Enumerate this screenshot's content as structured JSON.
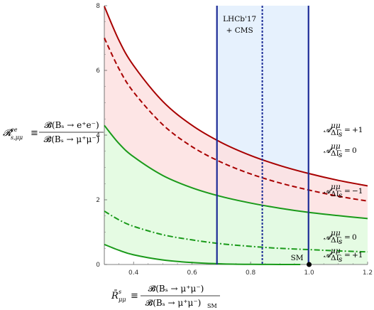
{
  "chart_data": {
    "type": "line",
    "xlim": [
      0.3,
      1.2
    ],
    "ylim": [
      0,
      8
    ],
    "x_ticks": [
      "0.4",
      "0.6",
      "0.8",
      "1.0",
      "1.2"
    ],
    "y_ticks": [
      "0",
      "2",
      "4",
      "6",
      "8"
    ],
    "ylabel": {
      "lhs": "𝓡",
      "lhs_sub": "s,μμ",
      "lhs_sup": "ee",
      "equiv": "≡",
      "numerator": "𝓑̄(Bₛ → e⁺e⁻)",
      "denominator": "𝓑̄(Bₛ → μ⁺μ⁻)"
    },
    "xlabel": {
      "lhs": "R̄",
      "lhs_sub": "μμ",
      "lhs_sup": "s",
      "equiv": "≡",
      "numerator": "𝓑̄(Bₛ → μ⁺μ⁻)",
      "denominator": "𝓑̄(Bₛ → μ⁺μ⁻)",
      "denominator_sub": "SM"
    },
    "band": {
      "label_line1": "LHCb'17",
      "label_line2": "+ CMS",
      "x_low": 0.685,
      "x_central": 0.84,
      "x_high": 0.998
    },
    "series": [
      {
        "label_value": "+1",
        "color": "#a80000",
        "style": "solid",
        "x": [
          0.3,
          0.35,
          0.4,
          0.5,
          0.6,
          0.7,
          0.8,
          0.9,
          1.0,
          1.1,
          1.2
        ],
        "y": [
          7.98,
          6.93,
          6.15,
          5.04,
          4.3,
          3.77,
          3.37,
          3.06,
          2.81,
          2.6,
          2.43
        ]
      },
      {
        "label_value": "0",
        "color": "#a80000",
        "style": "dashed",
        "x": [
          0.3,
          0.35,
          0.4,
          0.5,
          0.6,
          0.7,
          0.8,
          0.9,
          1.0,
          1.1,
          1.2
        ],
        "y": [
          7.0,
          6.05,
          5.33,
          4.32,
          3.64,
          3.16,
          2.8,
          2.52,
          2.3,
          2.11,
          1.96
        ]
      },
      {
        "label_value": "−1",
        "color": "#1a9a1a",
        "style": "solid",
        "x": [
          0.3,
          0.35,
          0.4,
          0.5,
          0.6,
          0.7,
          0.8,
          0.9,
          1.0,
          1.1,
          1.2
        ],
        "y": [
          4.3,
          3.74,
          3.33,
          2.75,
          2.37,
          2.1,
          1.9,
          1.74,
          1.61,
          1.51,
          1.42
        ]
      },
      {
        "label_value": "0",
        "color": "#1a9a1a",
        "style": "dashdot",
        "x": [
          0.3,
          0.35,
          0.4,
          0.5,
          0.6,
          0.7,
          0.8,
          0.9,
          1.0,
          1.1,
          1.2
        ],
        "y": [
          1.65,
          1.38,
          1.18,
          0.92,
          0.76,
          0.64,
          0.56,
          0.5,
          0.46,
          0.42,
          0.39
        ]
      },
      {
        "label_value": "+1",
        "color": "#1a9a1a",
        "style": "solid",
        "x": [
          0.3,
          0.35,
          0.4,
          0.5,
          0.6,
          0.7,
          0.8,
          0.9,
          0.97
        ],
        "y": [
          0.62,
          0.44,
          0.3,
          0.14,
          0.06,
          0.02,
          0.005,
          0.001,
          0.0
        ]
      }
    ],
    "asym_label": {
      "symbol": "𝓐",
      "sup": "μμ",
      "sub": "ΔΓ",
      "subsub": "s",
      "eq": "="
    },
    "sm_point": {
      "label": "SM",
      "x": 1.0,
      "y": 0.0
    },
    "colors": {
      "red_fill": "#fde0e0",
      "green_fill": "#e2fbe0",
      "band_fill": "#e6f1fd",
      "band_line": "#1c2b96"
    }
  }
}
